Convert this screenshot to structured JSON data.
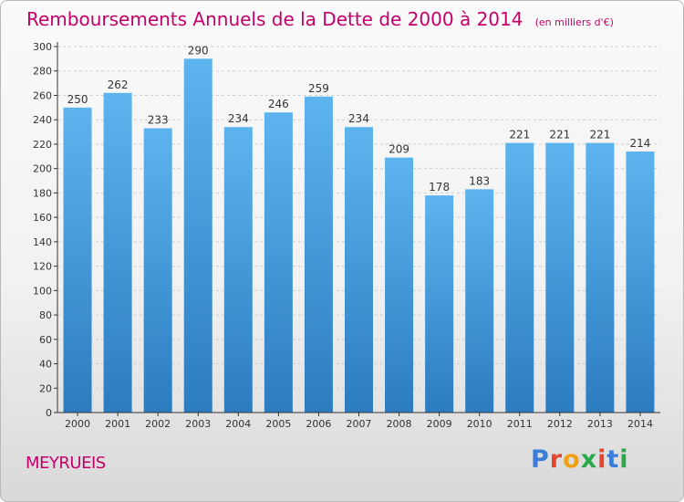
{
  "header": {
    "title": "Remboursements Annuels de la Dette de 2000 à 2014",
    "unit": "(en milliers d'€)"
  },
  "footer": {
    "commune": "MEYRUEIS",
    "brand_letters": [
      "P",
      "r",
      "o",
      "x",
      "i",
      "t",
      "i"
    ],
    "brand_colors": [
      "#3b7dd8",
      "#e5462e",
      "#f0a010",
      "#2aa84a",
      "#e5462e",
      "#3b7dd8",
      "#2aa84a"
    ]
  },
  "chart_data": {
    "type": "bar",
    "title": "Remboursements Annuels de la Dette de 2000 à 2014",
    "xlabel": "",
    "ylabel": "",
    "categories": [
      "2000",
      "2001",
      "2002",
      "2003",
      "2004",
      "2005",
      "2006",
      "2007",
      "2008",
      "2009",
      "2010",
      "2011",
      "2012",
      "2013",
      "2014"
    ],
    "values": [
      250,
      262,
      233,
      290,
      234,
      246,
      259,
      234,
      209,
      178,
      183,
      221,
      221,
      221,
      214
    ],
    "ylim": [
      0,
      300
    ],
    "yticks": [
      0,
      20,
      40,
      60,
      80,
      100,
      120,
      140,
      160,
      180,
      200,
      220,
      240,
      260,
      280,
      300
    ],
    "grid": true,
    "colors": {
      "bar_top": "#5db4ee",
      "bar_bottom": "#2b7cc0",
      "grid": "#cfcfcf",
      "axis": "#333333",
      "text": "#333333"
    }
  }
}
